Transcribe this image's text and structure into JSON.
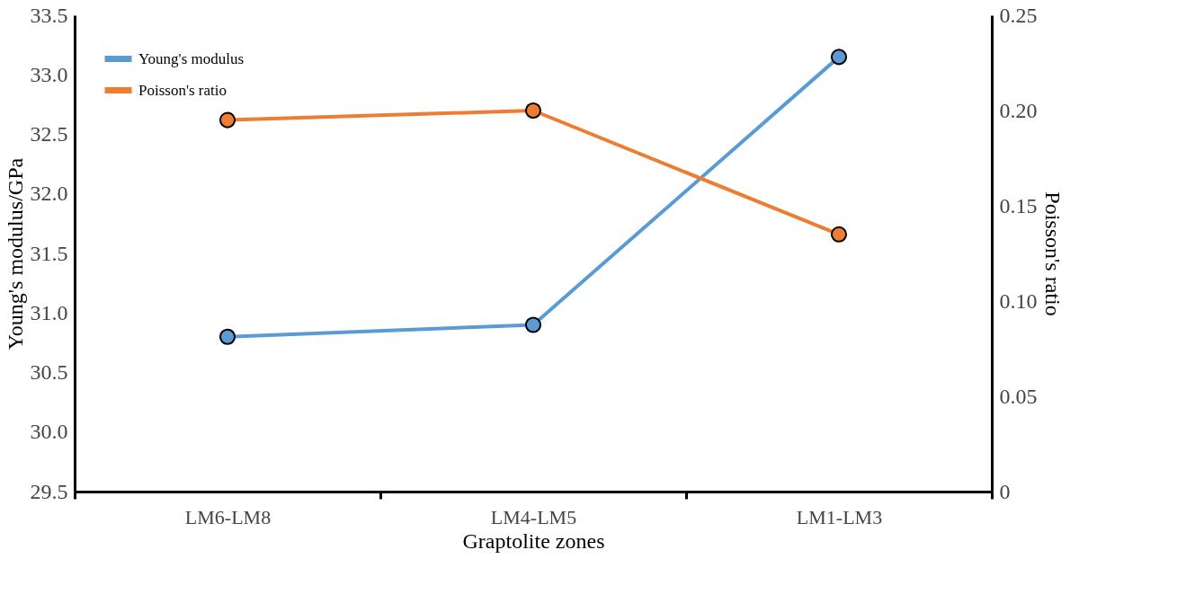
{
  "chart_data": {
    "type": "line",
    "xlabel": "Graptolite zones",
    "ylabel": "Young's modulus/GPa",
    "y2label": "Poisson's ratio",
    "categories": [
      "LM6-LM8",
      "LM4-LM5",
      "LM1-LM3"
    ],
    "series": [
      {
        "name": "Young's modulus",
        "color": "#5b9bd5",
        "values": [
          30.8,
          30.9,
          33.15
        ]
      },
      {
        "name": "Poisson's ratio",
        "color": "#ed7d31",
        "values": [
          0.195,
          0.2,
          0.135
        ],
        "axis": "y2"
      }
    ],
    "ylim": [
      29.5,
      33.5
    ],
    "yticks": [
      29.5,
      {
        "value": 30,
        "label": "30.0"
      },
      30.5,
      {
        "value": 31,
        "label": "31.0"
      },
      31.5,
      {
        "value": 32,
        "label": "32.0"
      },
      32.5,
      {
        "value": 33,
        "label": "33.0"
      },
      33.5
    ],
    "y2lim": [
      0,
      0.25
    ],
    "y2ticks": [
      0,
      0.05,
      {
        "value": 0.1,
        "label": "0.10"
      },
      0.15,
      {
        "value": 0.2,
        "label": "0.20"
      },
      0.25
    ],
    "marker": "circle",
    "line_style": "solid",
    "grid": false,
    "legend": "top left"
  }
}
